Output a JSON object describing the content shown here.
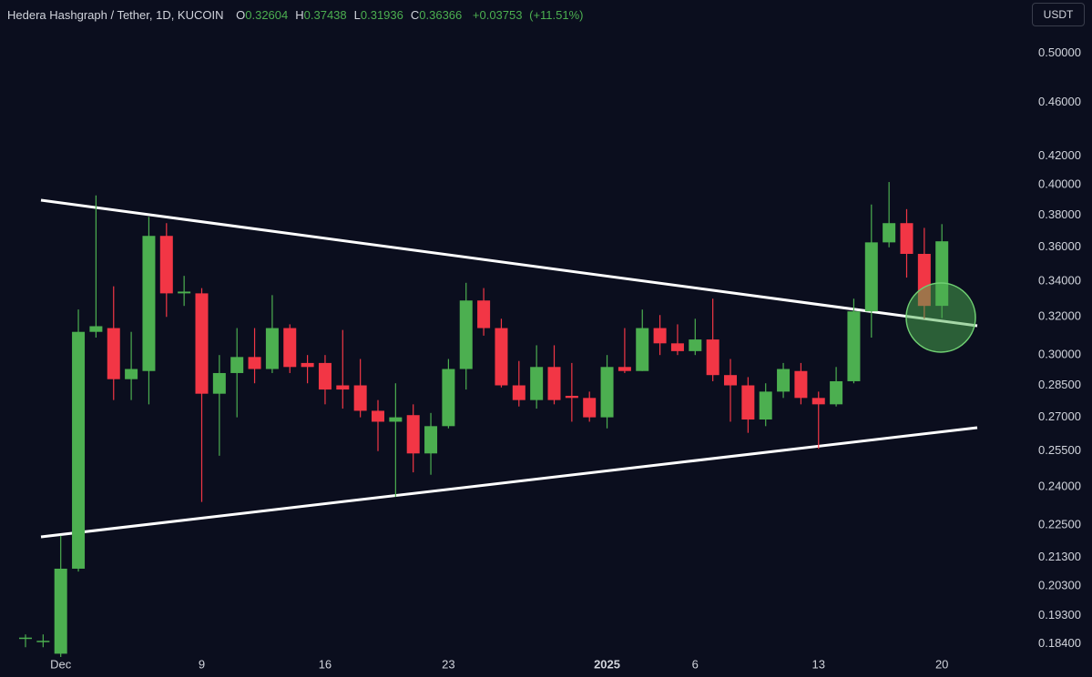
{
  "chart_data": {
    "type": "candlestick",
    "title": "Hedera Hashgraph / Tether, 1D, KUCOIN",
    "ohlc_header": [
      {
        "label": "O",
        "value": "0.32604"
      },
      {
        "label": "H",
        "value": "0.37438"
      },
      {
        "label": "L",
        "value": "0.31936"
      },
      {
        "label": "C",
        "value": "0.36366"
      }
    ],
    "change": "+0.03753",
    "change_pct": "(+11.51%)",
    "currency": "USDT",
    "up_color": "#4caf50",
    "down_color": "#f23645",
    "log_scale": true,
    "categories": [
      null,
      null,
      "Dec",
      null,
      null,
      null,
      null,
      null,
      null,
      null,
      "9",
      null,
      null,
      null,
      null,
      null,
      null,
      "16",
      null,
      null,
      null,
      null,
      null,
      null,
      "23",
      null,
      null,
      null,
      null,
      null,
      null,
      null,
      null,
      "2025",
      null,
      null,
      null,
      null,
      "6",
      null,
      null,
      null,
      null,
      null,
      null,
      "13",
      null,
      null,
      null,
      null,
      null,
      null,
      "20"
    ],
    "open": [
      0.186,
      0.185,
      0.181,
      0.209,
      0.312,
      0.314,
      0.288,
      0.292,
      0.367,
      0.333,
      0.333,
      0.281,
      0.291,
      0.299,
      0.293,
      0.314,
      0.296,
      0.296,
      0.285,
      0.285,
      0.273,
      0.268,
      0.271,
      0.254,
      0.266,
      0.293,
      0.329,
      0.314,
      0.285,
      0.278,
      0.294,
      0.28,
      0.279,
      0.27,
      0.294,
      0.292,
      0.314,
      0.306,
      0.302,
      0.308,
      0.29,
      0.285,
      0.269,
      0.282,
      0.292,
      0.279,
      0.276,
      0.287,
      0.323,
      0.363,
      0.375,
      0.356,
      0.32604
    ],
    "high": [
      0.187,
      0.187,
      0.221,
      0.324,
      0.393,
      0.337,
      0.312,
      0.379,
      0.375,
      0.343,
      0.336,
      0.3,
      0.314,
      0.314,
      0.332,
      0.316,
      0.3,
      0.3,
      0.313,
      0.298,
      0.278,
      0.286,
      0.276,
      0.272,
      0.298,
      0.339,
      0.336,
      0.319,
      0.297,
      0.305,
      0.305,
      0.296,
      0.282,
      0.3,
      0.314,
      0.324,
      0.321,
      0.316,
      0.319,
      0.33,
      0.298,
      0.289,
      0.286,
      0.296,
      0.296,
      0.282,
      0.294,
      0.33,
      0.387,
      0.402,
      0.384,
      0.372,
      0.37438
    ],
    "low": [
      0.183,
      0.183,
      0.18,
      0.208,
      0.309,
      0.278,
      0.278,
      0.276,
      0.32,
      0.326,
      0.234,
      0.253,
      0.27,
      0.286,
      0.291,
      0.291,
      0.286,
      0.276,
      0.274,
      0.27,
      0.255,
      0.236,
      0.246,
      0.245,
      0.265,
      0.283,
      0.31,
      0.284,
      0.275,
      0.274,
      0.276,
      0.268,
      0.268,
      0.265,
      0.291,
      0.292,
      0.3,
      0.3,
      0.3,
      0.287,
      0.268,
      0.263,
      0.266,
      0.279,
      0.276,
      0.256,
      0.275,
      0.286,
      0.309,
      0.36,
      0.342,
      0.319,
      0.31936
    ],
    "close": [
      0.186,
      0.185,
      0.209,
      0.312,
      0.315,
      0.288,
      0.293,
      0.367,
      0.333,
      0.334,
      0.281,
      0.291,
      0.299,
      0.293,
      0.314,
      0.294,
      0.294,
      0.283,
      0.283,
      0.273,
      0.268,
      0.27,
      0.254,
      0.266,
      0.293,
      0.329,
      0.314,
      0.285,
      0.278,
      0.294,
      0.278,
      0.279,
      0.27,
      0.294,
      0.292,
      0.314,
      0.306,
      0.302,
      0.308,
      0.29,
      0.285,
      0.269,
      0.282,
      0.293,
      0.279,
      0.276,
      0.287,
      0.323,
      0.363,
      0.375,
      0.356,
      0.326,
      0.36366
    ],
    "ylim": [
      0.18,
      0.547
    ],
    "yticks": [
      {
        "value": 0.5,
        "label": "0.50000"
      },
      {
        "value": 0.46,
        "label": "0.46000"
      },
      {
        "value": 0.42,
        "label": "0.42000"
      },
      {
        "value": 0.4,
        "label": "0.40000"
      },
      {
        "value": 0.38,
        "label": "0.38000"
      },
      {
        "value": 0.36,
        "label": "0.36000"
      },
      {
        "value": 0.34,
        "label": "0.34000"
      },
      {
        "value": 0.32,
        "label": "0.32000"
      },
      {
        "value": 0.3,
        "label": "0.30000"
      },
      {
        "value": 0.285,
        "label": "0.28500"
      },
      {
        "value": 0.27,
        "label": "0.27000"
      },
      {
        "value": 0.255,
        "label": "0.25500"
      },
      {
        "value": 0.24,
        "label": "0.24000"
      },
      {
        "value": 0.225,
        "label": "0.22500"
      },
      {
        "value": 0.213,
        "label": "0.21300"
      },
      {
        "value": 0.203,
        "label": "0.20300"
      },
      {
        "value": 0.193,
        "label": "0.19300"
      },
      {
        "value": 0.184,
        "label": "0.18400"
      }
    ]
  }
}
